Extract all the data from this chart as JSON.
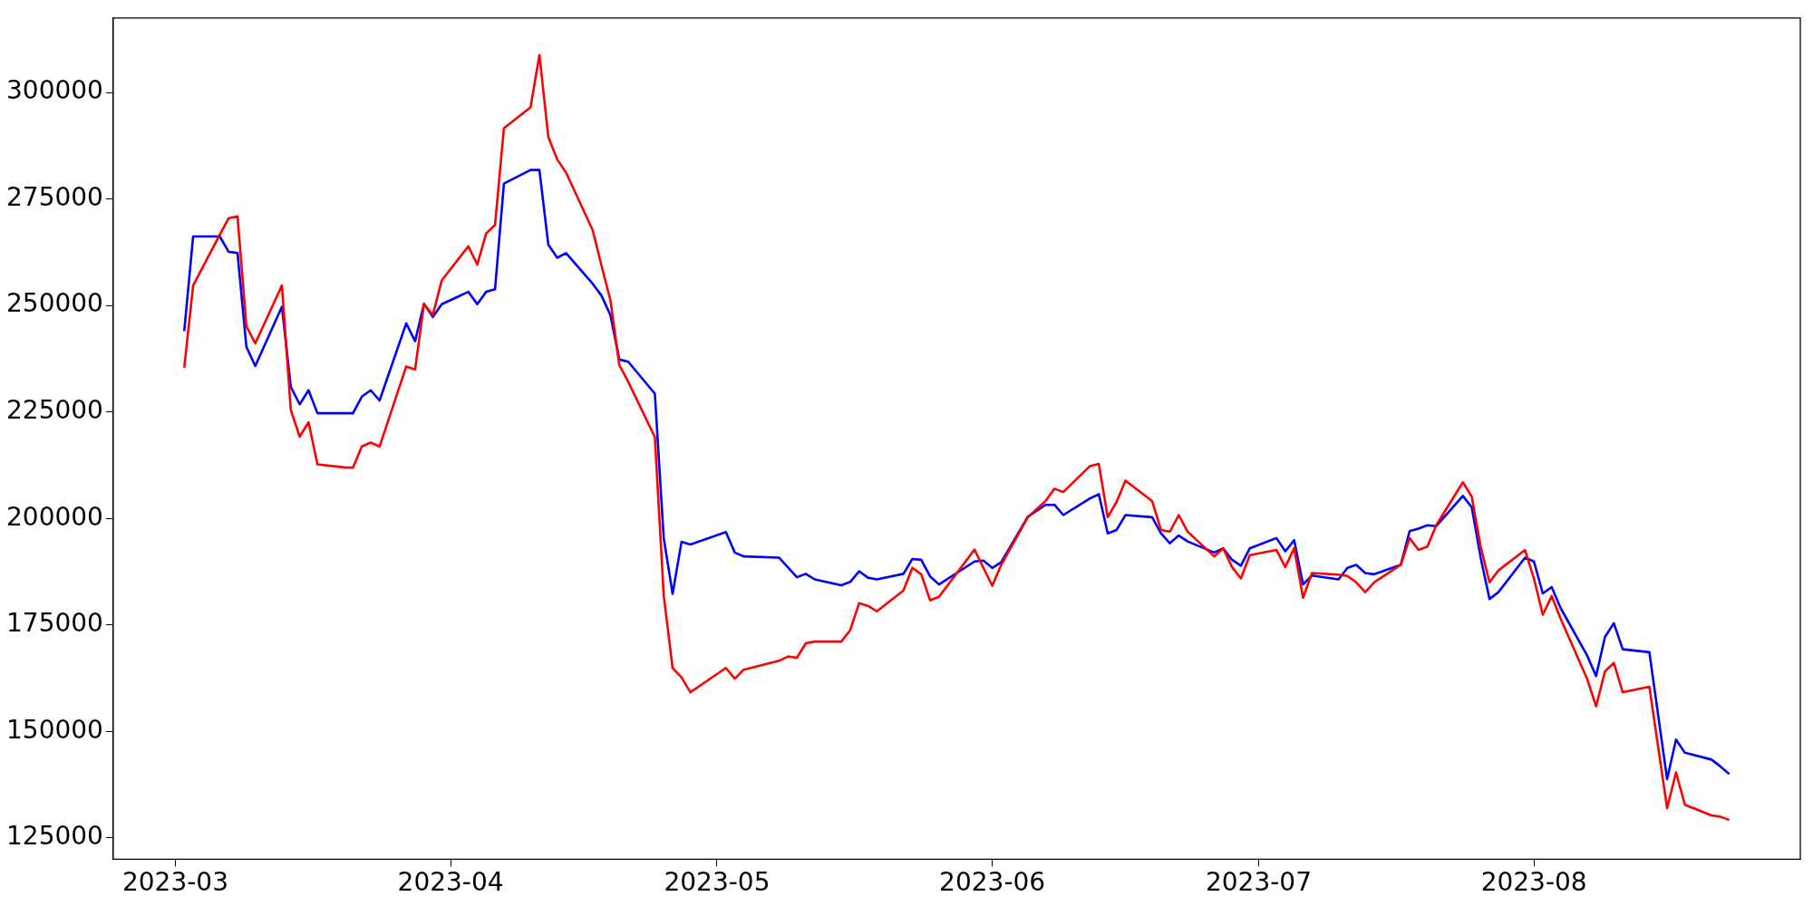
{
  "chart_data": {
    "type": "line",
    "x": [
      "2023-03-02",
      "2023-03-03",
      "2023-03-06",
      "2023-03-07",
      "2023-03-08",
      "2023-03-09",
      "2023-03-10",
      "2023-03-13",
      "2023-03-14",
      "2023-03-15",
      "2023-03-16",
      "2023-03-17",
      "2023-03-20",
      "2023-03-21",
      "2023-03-22",
      "2023-03-23",
      "2023-03-24",
      "2023-03-27",
      "2023-03-28",
      "2023-03-29",
      "2023-03-30",
      "2023-03-31",
      "2023-04-03",
      "2023-04-04",
      "2023-04-05",
      "2023-04-06",
      "2023-04-07",
      "2023-04-10",
      "2023-04-11",
      "2023-04-12",
      "2023-04-13",
      "2023-04-14",
      "2023-04-17",
      "2023-04-18",
      "2023-04-19",
      "2023-04-20",
      "2023-04-21",
      "2023-04-24",
      "2023-04-25",
      "2023-04-26",
      "2023-04-27",
      "2023-04-28",
      "2023-05-02",
      "2023-05-03",
      "2023-05-04",
      "2023-05-08",
      "2023-05-09",
      "2023-05-10",
      "2023-05-11",
      "2023-05-12",
      "2023-05-15",
      "2023-05-16",
      "2023-05-17",
      "2023-05-18",
      "2023-05-19",
      "2023-05-22",
      "2023-05-23",
      "2023-05-24",
      "2023-05-25",
      "2023-05-26",
      "2023-05-30",
      "2023-05-31",
      "2023-06-01",
      "2023-06-02",
      "2023-06-05",
      "2023-06-07",
      "2023-06-08",
      "2023-06-09",
      "2023-06-12",
      "2023-06-13",
      "2023-06-14",
      "2023-06-15",
      "2023-06-16",
      "2023-06-19",
      "2023-06-20",
      "2023-06-21",
      "2023-06-22",
      "2023-06-23",
      "2023-06-26",
      "2023-06-27",
      "2023-06-28",
      "2023-06-29",
      "2023-06-30",
      "2023-07-03",
      "2023-07-04",
      "2023-07-05",
      "2023-07-06",
      "2023-07-07",
      "2023-07-10",
      "2023-07-11",
      "2023-07-12",
      "2023-07-13",
      "2023-07-14",
      "2023-07-17",
      "2023-07-18",
      "2023-07-19",
      "2023-07-20",
      "2023-07-21",
      "2023-07-24",
      "2023-07-25",
      "2023-07-26",
      "2023-07-27",
      "2023-07-28",
      "2023-07-31",
      "2023-08-01",
      "2023-08-02",
      "2023-08-03",
      "2023-08-04",
      "2023-08-07",
      "2023-08-08",
      "2023-08-09",
      "2023-08-10",
      "2023-08-11",
      "2023-08-14",
      "2023-08-16",
      "2023-08-17",
      "2023-08-18",
      "2023-08-21",
      "2023-08-22",
      "2023-08-23"
    ],
    "series": [
      {
        "color": "#ff0000",
        "values": [
          235400,
          254700,
          266600,
          270500,
          270900,
          245100,
          241100,
          254700,
          225500,
          219200,
          222600,
          212700,
          212000,
          211900,
          216900,
          217800,
          216900,
          235700,
          235000,
          250300,
          247800,
          255900,
          263900,
          259600,
          266900,
          268900,
          291600,
          296500,
          308800,
          289600,
          284300,
          281200,
          267700,
          259300,
          251200,
          236000,
          232100,
          219100,
          181900,
          164900,
          162700,
          159200,
          164900,
          162400,
          164500,
          166600,
          167600,
          167300,
          170700,
          171100,
          171100,
          173800,
          180100,
          179500,
          178200,
          183100,
          188400,
          186900,
          180800,
          181600,
          192700,
          188400,
          184200,
          189100,
          200300,
          204100,
          207000,
          206200,
          212300,
          212800,
          200300,
          203900,
          208900,
          204100,
          197300,
          196900,
          200800,
          196900,
          191100,
          193000,
          188600,
          185900,
          191400,
          192600,
          188600,
          193000,
          181400,
          187200,
          186800,
          186500,
          185000,
          182700,
          185000,
          189100,
          195400,
          192600,
          193400,
          198400,
          208500,
          205100,
          193400,
          185000,
          187800,
          192600,
          185900,
          177400,
          181800,
          176500,
          162300,
          155900,
          164100,
          166100,
          159200,
          160500,
          132000,
          140400,
          132800,
          130300,
          130000,
          129200
        ]
      },
      {
        "color": "#0000ff",
        "values": [
          244000,
          266200,
          266200,
          262600,
          262300,
          240300,
          235800,
          249700,
          230900,
          226800,
          230100,
          224700,
          224700,
          224700,
          228600,
          230100,
          227700,
          245800,
          241600,
          250400,
          247300,
          250300,
          253200,
          250300,
          253200,
          253800,
          278600,
          281800,
          281800,
          264300,
          261200,
          262300,
          255100,
          252300,
          247700,
          237300,
          236800,
          229300,
          195400,
          182300,
          194500,
          193900,
          196800,
          192000,
          191100,
          190800,
          188500,
          186200,
          187000,
          185700,
          184300,
          185100,
          187600,
          186100,
          185700,
          187000,
          190500,
          190300,
          186400,
          184500,
          189900,
          190100,
          188400,
          189700,
          200400,
          203200,
          203200,
          200800,
          204700,
          205700,
          196500,
          197300,
          200800,
          200300,
          196500,
          194200,
          196000,
          194600,
          192000,
          193000,
          190300,
          188900,
          193000,
          195400,
          192300,
          194900,
          184500,
          186600,
          185700,
          188400,
          189100,
          187200,
          186900,
          189100,
          197000,
          197600,
          198400,
          198200,
          205300,
          202600,
          190800,
          181100,
          182700,
          190800,
          189900,
          182400,
          183900,
          179000,
          167800,
          163000,
          172200,
          175400,
          169300,
          168600,
          138800,
          148100,
          145000,
          143400,
          141800,
          140000
        ]
      }
    ],
    "xlim": [
      "2023-02-22",
      "2023-08-31"
    ],
    "xticks": [
      "2023-03",
      "2023-04",
      "2023-05",
      "2023-06",
      "2023-07",
      "2023-08"
    ],
    "ylim": [
      120000,
      317500
    ],
    "yticks": [
      125000,
      150000,
      175000,
      200000,
      225000,
      250000,
      275000,
      300000
    ],
    "grid": false,
    "legend": false,
    "marker": "none",
    "line_style": "solid"
  }
}
